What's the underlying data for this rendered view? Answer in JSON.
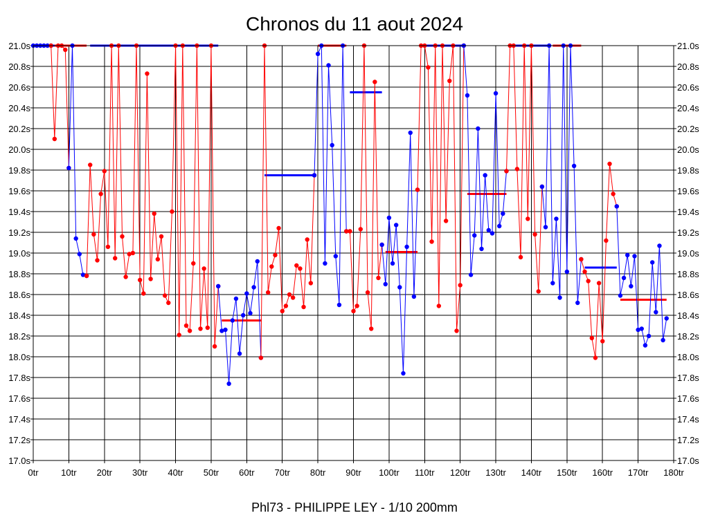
{
  "chart_data": {
    "type": "line",
    "title": "Chronos du 11 aout 2024",
    "subtitle": "Phl73 - PHILIPPE LEY - 1/10 200mm",
    "xlabel": "",
    "ylabel": "",
    "xlim": [
      0,
      180
    ],
    "ylim": [
      17.0,
      21.0
    ],
    "x_ticks": [
      0,
      10,
      20,
      30,
      40,
      50,
      60,
      70,
      80,
      90,
      100,
      110,
      120,
      130,
      140,
      150,
      160,
      170,
      180
    ],
    "x_tick_labels": [
      "0tr",
      "10tr",
      "20tr",
      "30tr",
      "40tr",
      "50tr",
      "60tr",
      "70tr",
      "80tr",
      "90tr",
      "100tr",
      "110tr",
      "120tr",
      "130tr",
      "140tr",
      "150tr",
      "160tr",
      "170tr",
      "180tr"
    ],
    "y_ticks": [
      17.0,
      17.2,
      17.4,
      17.6,
      17.8,
      18.0,
      18.2,
      18.4,
      18.6,
      18.8,
      19.0,
      19.2,
      19.4,
      19.6,
      19.8,
      20.0,
      20.2,
      20.4,
      20.6,
      20.8,
      21.0
    ],
    "y_tick_labels": [
      "17.0s",
      "17.2s",
      "17.4s",
      "17.6s",
      "17.8s",
      "18.0s",
      "18.2s",
      "18.4s",
      "18.6s",
      "18.8s",
      "19.0s",
      "19.2s",
      "19.4s",
      "19.6s",
      "19.8s",
      "20.0s",
      "20.2s",
      "20.4s",
      "20.6s",
      "20.8s",
      "21.0s"
    ],
    "grid": true,
    "colors": {
      "red": "#ff0000",
      "blue": "#0000ff",
      "grid": "#000000"
    },
    "series": [
      {
        "name": "run1",
        "color": "blue",
        "points": [
          [
            0,
            21.0
          ],
          [
            1,
            21.0
          ],
          [
            2,
            21.0
          ],
          [
            3,
            21.0
          ],
          [
            4,
            21.0
          ],
          [
            5,
            21.0
          ]
        ]
      },
      {
        "name": "run2",
        "color": "red",
        "points": [
          [
            5,
            21.0
          ],
          [
            6,
            20.1
          ],
          [
            7,
            21.0
          ],
          [
            8,
            21.0
          ],
          [
            9,
            20.96
          ],
          [
            10,
            19.82
          ]
        ]
      },
      {
        "name": "run3",
        "color": "blue",
        "points": [
          [
            10,
            19.82
          ],
          [
            11,
            21.0
          ],
          [
            12,
            19.14
          ],
          [
            13,
            18.99
          ],
          [
            14,
            18.79
          ],
          [
            15,
            18.78
          ]
        ]
      },
      {
        "name": "run4",
        "color": "red",
        "points": [
          [
            15,
            18.78
          ],
          [
            16,
            19.85
          ],
          [
            17,
            19.18
          ],
          [
            18,
            18.93
          ],
          [
            19,
            19.57
          ],
          [
            20,
            19.79
          ],
          [
            21,
            19.06
          ],
          [
            22,
            21.0
          ],
          [
            23,
            18.95
          ],
          [
            24,
            21.0
          ],
          [
            25,
            19.16
          ],
          [
            26,
            18.77
          ],
          [
            27,
            18.99
          ],
          [
            28,
            19.0
          ],
          [
            29,
            21.0
          ],
          [
            30,
            18.74
          ],
          [
            31,
            18.61
          ],
          [
            32,
            20.73
          ],
          [
            33,
            18.75
          ],
          [
            34,
            19.38
          ],
          [
            35,
            18.94
          ],
          [
            36,
            19.16
          ],
          [
            37,
            18.59
          ],
          [
            38,
            18.52
          ],
          [
            39,
            19.4
          ],
          [
            40,
            21.0
          ],
          [
            41,
            18.21
          ],
          [
            42,
            21.0
          ],
          [
            43,
            18.3
          ],
          [
            44,
            18.25
          ],
          [
            45,
            18.9
          ],
          [
            46,
            21.0
          ],
          [
            47,
            18.27
          ],
          [
            48,
            18.85
          ],
          [
            49,
            18.28
          ],
          [
            50,
            21.0
          ],
          [
            51,
            18.1
          ],
          [
            52,
            18.68
          ]
        ]
      },
      {
        "name": "run5",
        "color": "blue",
        "points": [
          [
            52,
            18.68
          ],
          [
            53,
            18.25
          ],
          [
            54,
            18.26
          ],
          [
            55,
            17.74
          ],
          [
            56,
            18.35
          ],
          [
            57,
            18.56
          ],
          [
            58,
            18.03
          ],
          [
            59,
            18.4
          ],
          [
            60,
            18.61
          ],
          [
            61,
            18.42
          ],
          [
            62,
            18.67
          ],
          [
            63,
            18.92
          ],
          [
            64,
            17.99
          ]
        ]
      },
      {
        "name": "run6",
        "color": "red",
        "points": [
          [
            64,
            17.99
          ],
          [
            65,
            21.0
          ],
          [
            66,
            18.62
          ],
          [
            67,
            18.87
          ],
          [
            68,
            18.98
          ],
          [
            69,
            19.24
          ],
          [
            70,
            18.44
          ],
          [
            71,
            18.49
          ],
          [
            72,
            18.6
          ],
          [
            73,
            18.57
          ],
          [
            74,
            18.88
          ],
          [
            75,
            18.85
          ],
          [
            76,
            18.48
          ],
          [
            77,
            19.13
          ],
          [
            78,
            18.71
          ],
          [
            79,
            19.75
          ]
        ]
      },
      {
        "name": "run7",
        "color": "blue",
        "points": [
          [
            79,
            19.75
          ],
          [
            80,
            20.92
          ],
          [
            81,
            21.0
          ],
          [
            82,
            18.9
          ],
          [
            83,
            20.81
          ],
          [
            84,
            20.04
          ],
          [
            85,
            18.97
          ],
          [
            86,
            18.5
          ],
          [
            87,
            21.0
          ],
          [
            88,
            19.21
          ]
        ]
      },
      {
        "name": "run8",
        "color": "red",
        "points": [
          [
            88,
            19.21
          ],
          [
            89,
            19.21
          ],
          [
            90,
            18.44
          ],
          [
            91,
            18.49
          ],
          [
            92,
            19.23
          ],
          [
            93,
            21.0
          ],
          [
            94,
            18.62
          ],
          [
            95,
            18.27
          ],
          [
            96,
            20.65
          ],
          [
            97,
            18.76
          ],
          [
            98,
            19.08
          ]
        ]
      },
      {
        "name": "run9",
        "color": "blue",
        "points": [
          [
            98,
            19.08
          ],
          [
            99,
            18.7
          ],
          [
            100,
            19.34
          ],
          [
            101,
            18.9
          ],
          [
            102,
            19.27
          ],
          [
            103,
            18.67
          ],
          [
            104,
            17.84
          ],
          [
            105,
            19.06
          ],
          [
            106,
            20.16
          ],
          [
            107,
            18.58
          ],
          [
            108,
            19.61
          ]
        ]
      },
      {
        "name": "run10",
        "color": "red",
        "points": [
          [
            108,
            19.61
          ],
          [
            109,
            21.0
          ],
          [
            110,
            21.0
          ],
          [
            111,
            20.79
          ],
          [
            112,
            19.11
          ],
          [
            113,
            21.0
          ],
          [
            114,
            18.49
          ],
          [
            115,
            21.0
          ],
          [
            116,
            19.31
          ],
          [
            117,
            20.66
          ],
          [
            118,
            21.0
          ],
          [
            119,
            18.25
          ],
          [
            120,
            18.69
          ],
          [
            121,
            21.0
          ]
        ]
      },
      {
        "name": "run11",
        "color": "blue",
        "points": [
          [
            121,
            21.0
          ],
          [
            122,
            20.52
          ],
          [
            123,
            18.79
          ],
          [
            124,
            19.17
          ],
          [
            125,
            20.2
          ],
          [
            126,
            19.04
          ],
          [
            127,
            19.75
          ],
          [
            128,
            19.22
          ],
          [
            129,
            19.19
          ],
          [
            130,
            20.54
          ],
          [
            131,
            19.26
          ],
          [
            132,
            19.38
          ],
          [
            133,
            19.79
          ]
        ]
      },
      {
        "name": "run12",
        "color": "red",
        "points": [
          [
            133,
            19.79
          ],
          [
            134,
            21.0
          ],
          [
            135,
            21.0
          ],
          [
            136,
            19.81
          ],
          [
            137,
            18.96
          ],
          [
            138,
            21.0
          ],
          [
            139,
            19.33
          ],
          [
            140,
            21.0
          ],
          [
            141,
            19.18
          ],
          [
            142,
            18.63
          ],
          [
            143,
            19.64
          ]
        ]
      },
      {
        "name": "run13",
        "color": "blue",
        "points": [
          [
            143,
            19.64
          ],
          [
            144,
            19.25
          ],
          [
            145,
            21.0
          ],
          [
            146,
            18.71
          ],
          [
            147,
            19.33
          ],
          [
            148,
            18.57
          ],
          [
            149,
            21.0
          ],
          [
            150,
            18.82
          ],
          [
            151,
            21.0
          ],
          [
            152,
            19.84
          ],
          [
            153,
            18.52
          ],
          [
            154,
            18.94
          ]
        ]
      },
      {
        "name": "run14",
        "color": "red",
        "points": [
          [
            154,
            18.94
          ],
          [
            155,
            18.82
          ],
          [
            156,
            18.73
          ],
          [
            157,
            18.18
          ],
          [
            158,
            17.99
          ],
          [
            159,
            18.71
          ],
          [
            160,
            18.15
          ],
          [
            161,
            19.12
          ],
          [
            162,
            19.86
          ],
          [
            163,
            19.57
          ],
          [
            164,
            19.45
          ]
        ]
      },
      {
        "name": "run15",
        "color": "blue",
        "points": [
          [
            164,
            19.45
          ],
          [
            165,
            18.59
          ],
          [
            166,
            18.76
          ],
          [
            167,
            18.98
          ],
          [
            168,
            18.68
          ],
          [
            169,
            18.97
          ],
          [
            170,
            18.26
          ],
          [
            171,
            18.27
          ],
          [
            172,
            18.11
          ],
          [
            173,
            18.2
          ],
          [
            174,
            18.91
          ],
          [
            175,
            18.43
          ],
          [
            176,
            19.07
          ],
          [
            177,
            18.16
          ],
          [
            178,
            18.37
          ]
        ]
      }
    ],
    "averages": [
      {
        "color": "blue",
        "x": [
          0,
          6
        ],
        "y": 21.0
      },
      {
        "color": "red",
        "x": [
          6,
          15
        ],
        "y": 21.0
      },
      {
        "color": "blue",
        "x": [
          16,
          52
        ],
        "y": 21.0
      },
      {
        "color": "red",
        "x": [
          53,
          64
        ],
        "y": 18.35
      },
      {
        "color": "blue",
        "x": [
          65,
          79
        ],
        "y": 19.75
      },
      {
        "color": "red",
        "x": [
          80,
          88
        ],
        "y": 21.0
      },
      {
        "color": "blue",
        "x": [
          89,
          98
        ],
        "y": 20.55
      },
      {
        "color": "red",
        "x": [
          99,
          108
        ],
        "y": 19.01
      },
      {
        "color": "blue",
        "x": [
          109,
          121
        ],
        "y": 21.0
      },
      {
        "color": "red",
        "x": [
          122,
          133
        ],
        "y": 19.57
      },
      {
        "color": "blue",
        "x": [
          134,
          145
        ],
        "y": 21.0
      },
      {
        "color": "red",
        "x": [
          146,
          154
        ],
        "y": 21.0
      },
      {
        "color": "blue",
        "x": [
          155,
          164
        ],
        "y": 18.86
      },
      {
        "color": "red",
        "x": [
          165,
          178
        ],
        "y": 18.55
      }
    ]
  }
}
